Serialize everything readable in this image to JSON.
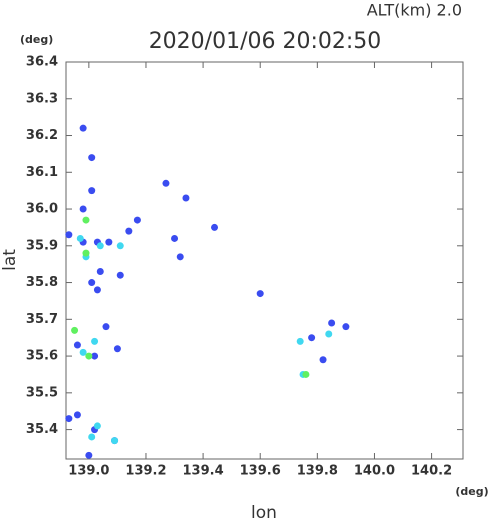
{
  "chart_data": {
    "type": "scatter",
    "title": "2020/01/06 20:02:50",
    "annotation": "ALT(km) 2.0",
    "y_unit": "(deg)",
    "x_unit": "(deg)",
    "x_label": "lon",
    "y_label": "lat",
    "xlim": [
      138.92,
      140.31
    ],
    "ylim": [
      35.32,
      36.4
    ],
    "xticks": [
      {
        "value": 139.0,
        "label": "139.0"
      },
      139.2,
      139.4,
      139.6,
      139.8,
      {
        "value": 140.0,
        "label": "140.0"
      },
      140.2
    ],
    "yticks": [
      35.4,
      35.5,
      35.6,
      35.7,
      35.8,
      35.9,
      {
        "value": 36.0,
        "label": "36.0"
      },
      36.1,
      36.2,
      36.3,
      36.4
    ],
    "grid": false,
    "series": [
      {
        "color": "#3a4cf0",
        "x": [
          138.98,
          139.01,
          139.01,
          138.98,
          138.93,
          138.98,
          139.03,
          139.07,
          139.17,
          139.14,
          139.27,
          139.34,
          139.3,
          139.44,
          139.32,
          139.04,
          139.01,
          139.03,
          139.11,
          139.6,
          139.06,
          138.96,
          139.1,
          139.02,
          139.82,
          139.85,
          139.9,
          139.78,
          138.96,
          139.02,
          139.09,
          139.0,
          138.93
        ],
        "values": [
          36.22,
          36.14,
          36.05,
          36.0,
          35.93,
          35.91,
          35.91,
          35.91,
          35.97,
          35.94,
          36.07,
          36.03,
          35.92,
          35.95,
          35.87,
          35.83,
          35.8,
          35.78,
          35.82,
          35.77,
          35.68,
          35.63,
          35.62,
          35.6,
          35.59,
          35.69,
          35.68,
          35.65,
          35.44,
          35.4,
          35.37,
          35.33,
          35.43
        ]
      },
      {
        "color": "#40d8f0",
        "x": [
          138.97,
          139.04,
          139.11,
          138.99,
          138.98,
          139.02,
          139.74,
          139.84,
          139.01,
          139.03,
          139.75,
          139.09
        ],
        "values": [
          35.92,
          35.9,
          35.9,
          35.87,
          35.61,
          35.64,
          35.64,
          35.66,
          35.38,
          35.41,
          35.55,
          35.37
        ]
      },
      {
        "color": "#60f060",
        "x": [
          138.99,
          138.99,
          139.0,
          138.95,
          139.76
        ],
        "values": [
          35.97,
          35.88,
          35.6,
          35.67,
          35.55
        ]
      }
    ]
  }
}
